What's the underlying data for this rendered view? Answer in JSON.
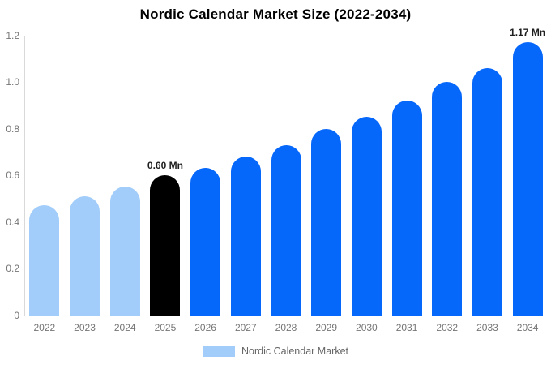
{
  "chart_data": {
    "type": "bar",
    "title": "Nordic Calendar Market Size (2022-2034)",
    "unit": "Mn",
    "categories": [
      "2022",
      "2023",
      "2024",
      "2025",
      "2026",
      "2027",
      "2028",
      "2029",
      "2030",
      "2031",
      "2032",
      "2033",
      "2034"
    ],
    "values": [
      0.47,
      0.51,
      0.55,
      0.6,
      0.63,
      0.68,
      0.73,
      0.8,
      0.85,
      0.92,
      1.0,
      1.06,
      1.17
    ],
    "bar_value_labels": {
      "2025": "0.60 Mn",
      "2034": "1.17 Mn"
    },
    "ylim": [
      0,
      1.2
    ],
    "ytick_labels": [
      "0",
      "0.2",
      "0.4",
      "0.6",
      "0.8",
      "1.0",
      "1.2"
    ],
    "grid": false,
    "legend": {
      "position": "bottom",
      "label": "Nordic Calendar Market",
      "swatch_color": "#A2CDFA"
    },
    "series_colors": {
      "historical_2022_2024": "#A2CDFA",
      "base_year_2025": "#000000",
      "forecast_2026_2034": "#0667FB"
    },
    "bar_colors": [
      "#A2CDFA",
      "#A2CDFA",
      "#A2CDFA",
      "#000000",
      "#0667FB",
      "#0667FB",
      "#0667FB",
      "#0667FB",
      "#0667FB",
      "#0667FB",
      "#0667FB",
      "#0667FB",
      "#0667FB"
    ]
  },
  "styles": {
    "background": "#ffffff",
    "title_text": "#000000",
    "axis_line": "#d9d9d9",
    "tick_text": "#757575",
    "bar_label_text": "#1f1f1f",
    "legend_text": "#666666"
  }
}
